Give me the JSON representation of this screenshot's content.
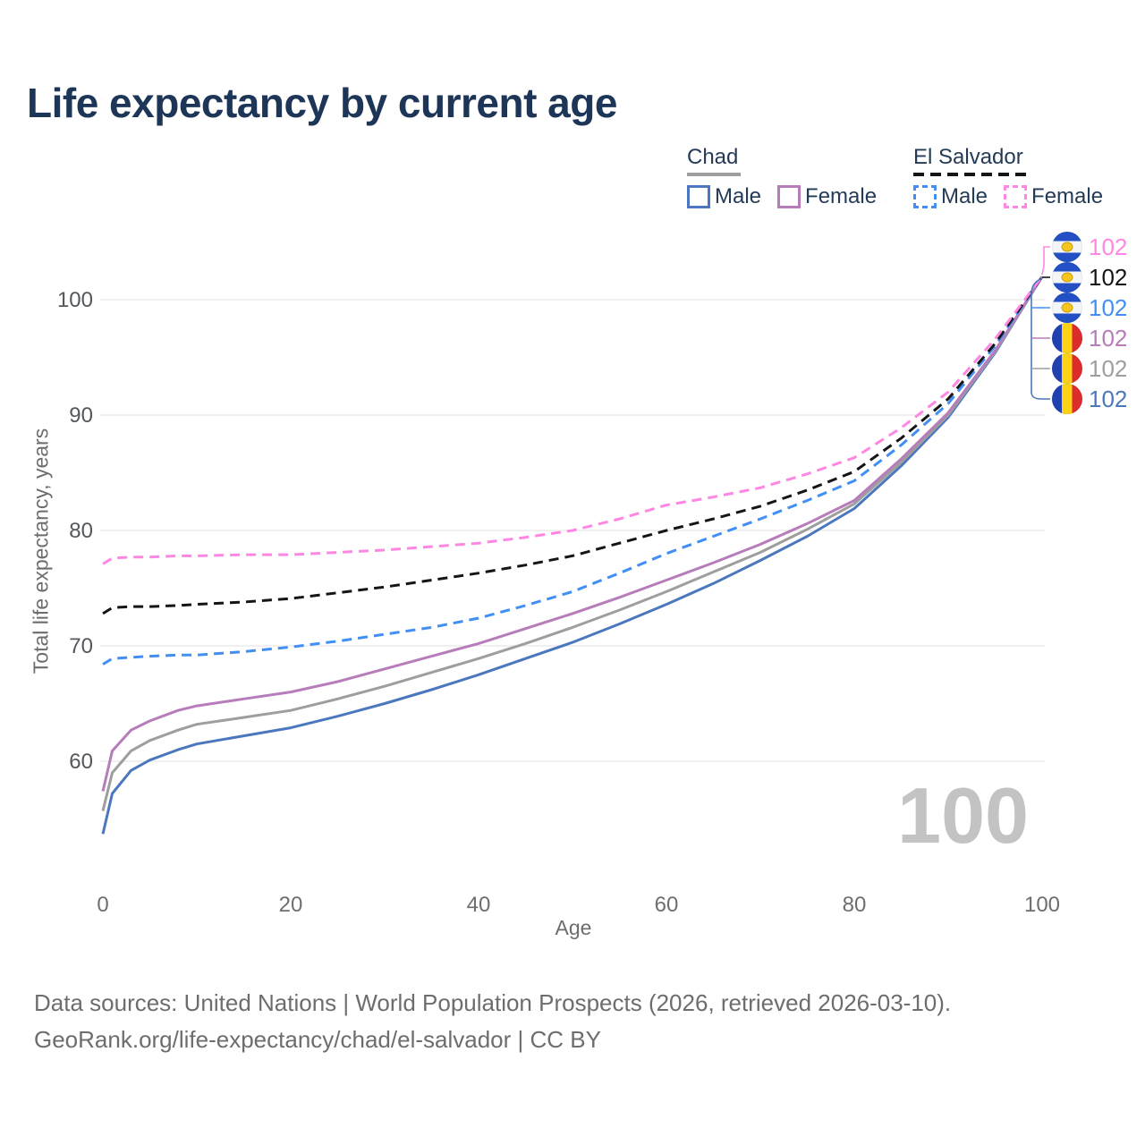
{
  "title": "Life expectancy by current age",
  "legend": {
    "chad": {
      "name": "Chad",
      "male": "Male",
      "female": "Female"
    },
    "el_salvador": {
      "name": "El Salvador",
      "male": "Male",
      "female": "Female"
    }
  },
  "watermark": "100",
  "footer": {
    "line1": "Data sources: United Nations | World Population Prospects (2026, retrieved 2026-03-10).",
    "line2": "GeoRank.org/life-expectancy/chad/el-salvador | CC BY"
  },
  "colors": {
    "chad_male": "#4a77bd",
    "chad_all": "#9e9e9e",
    "chad_female": "#b77cba",
    "el_salvador_male": "#418ff4",
    "el_salvador_all": "#151515",
    "el_salvador_female": "#ff87e3",
    "title_text": "#1d3557",
    "grid": "#ebebeb",
    "tick_text": "#54575b",
    "watermark_text": "#c3c3c3"
  },
  "chart_data": {
    "type": "line",
    "title": "Life expectancy by current age",
    "xlabel": "Age",
    "ylabel": "Total life expectancy, years",
    "xlim": [
      0,
      100
    ],
    "ylim": [
      53,
      103
    ],
    "xticks": [
      0,
      20,
      40,
      60,
      80,
      100
    ],
    "yticks": [
      60,
      70,
      80,
      90,
      100
    ],
    "grid": "horizontal",
    "legend_position": "top-right",
    "x": [
      0,
      1,
      3,
      5,
      8,
      10,
      15,
      20,
      25,
      30,
      35,
      40,
      45,
      50,
      55,
      60,
      65,
      70,
      75,
      80,
      85,
      90,
      95,
      100
    ],
    "series": [
      {
        "id": "chad-male",
        "name": "Chad Male",
        "color": "#4a77bd",
        "dashed": false,
        "flag": "chad",
        "row": 5,
        "end_value": "102",
        "values": [
          53.7,
          57.2,
          59.2,
          60.1,
          61.0,
          61.5,
          62.2,
          62.9,
          63.9,
          65.0,
          66.2,
          67.5,
          68.9,
          70.3,
          71.9,
          73.6,
          75.4,
          77.4,
          79.5,
          81.9,
          85.6,
          89.8,
          95.4,
          102
        ]
      },
      {
        "id": "chad-all",
        "name": "Chad Both sexes",
        "color": "#9e9e9e",
        "dashed": false,
        "flag": "chad",
        "row": 4,
        "end_value": "102",
        "values": [
          55.7,
          59.0,
          60.9,
          61.8,
          62.7,
          63.2,
          63.8,
          64.4,
          65.4,
          66.5,
          67.7,
          68.9,
          70.2,
          71.6,
          73.1,
          74.7,
          76.4,
          78.1,
          80.1,
          82.3,
          85.9,
          90.0,
          95.5,
          102
        ]
      },
      {
        "id": "chad-female",
        "name": "Chad Female",
        "color": "#b77cba",
        "dashed": false,
        "flag": "chad",
        "row": 3,
        "end_value": "102",
        "values": [
          57.4,
          60.9,
          62.7,
          63.5,
          64.4,
          64.8,
          65.4,
          66.0,
          66.9,
          68.0,
          69.1,
          70.2,
          71.5,
          72.8,
          74.2,
          75.7,
          77.2,
          78.8,
          80.6,
          82.6,
          86.2,
          90.2,
          95.6,
          102
        ]
      },
      {
        "id": "el-salvador-male",
        "name": "El Salvador Male",
        "color": "#418ff4",
        "dashed": true,
        "flag": "el-salvador",
        "row": 2,
        "end_value": "102",
        "values": [
          68.4,
          68.9,
          69.0,
          69.1,
          69.2,
          69.2,
          69.5,
          69.9,
          70.4,
          71.0,
          71.6,
          72.4,
          73.5,
          74.7,
          76.3,
          78.0,
          79.5,
          81.0,
          82.6,
          84.3,
          87.4,
          91.0,
          96.0,
          102
        ]
      },
      {
        "id": "el-salvador-all",
        "name": "El Salvador Both sexes",
        "color": "#151515",
        "dashed": true,
        "flag": "el-salvador",
        "row": 1,
        "end_value": "102",
        "values": [
          72.8,
          73.3,
          73.4,
          73.4,
          73.5,
          73.6,
          73.8,
          74.1,
          74.6,
          75.1,
          75.7,
          76.3,
          77.0,
          77.8,
          78.9,
          80.0,
          81.0,
          82.1,
          83.5,
          85.1,
          88.0,
          91.4,
          96.2,
          102
        ]
      },
      {
        "id": "el-salvador-female",
        "name": "El Salvador Female",
        "color": "#ff87e3",
        "dashed": true,
        "flag": "el-salvador",
        "row": 0,
        "end_value": "102",
        "values": [
          77.1,
          77.6,
          77.7,
          77.7,
          77.8,
          77.8,
          77.9,
          77.9,
          78.1,
          78.3,
          78.6,
          78.9,
          79.4,
          80.0,
          81.0,
          82.2,
          82.9,
          83.7,
          84.9,
          86.3,
          88.9,
          92.0,
          96.6,
          102
        ]
      }
    ]
  }
}
